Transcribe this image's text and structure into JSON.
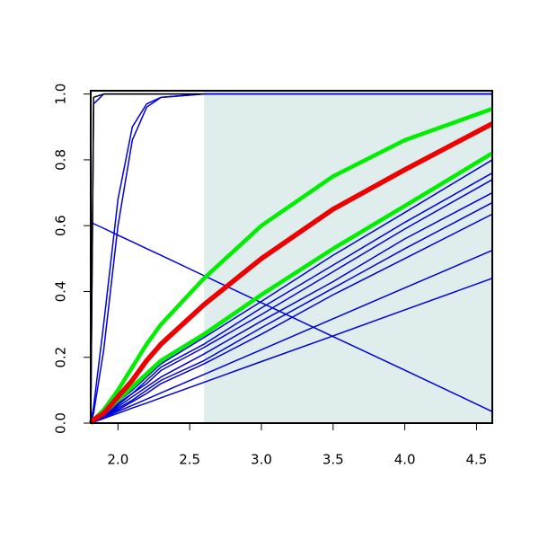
{
  "chart_data": {
    "type": "line",
    "x": [
      1.81,
      1.83,
      1.9,
      2.0,
      2.1,
      2.2,
      2.3,
      2.6,
      3.0,
      3.5,
      4.0,
      4.61
    ],
    "xlim": [
      1.81,
      4.61
    ],
    "ylim": [
      0,
      1.01
    ],
    "xticks": [
      {
        "value": 2.0,
        "label": "2.0"
      },
      2.5,
      {
        "value": 3.0,
        "label": "3.0"
      },
      3.5,
      {
        "value": 4.0,
        "label": "4.0"
      },
      4.5
    ],
    "yticks": [
      {
        "value": 0,
        "label": "0.0"
      },
      0.2,
      0.4,
      0.6,
      0.8,
      {
        "value": 1.0,
        "label": "1.0"
      }
    ],
    "shaded_region": {
      "xlim": [
        2.6,
        4.61
      ],
      "color": "#e0eded"
    },
    "series": [
      {
        "color": "#0000dd",
        "line_width": 1.5,
        "values": [
          0,
          0.005,
          0.02,
          0.04,
          0.065,
          0.09,
          0.12,
          0.18,
          0.27,
          0.39,
          0.5,
          0.635
        ]
      },
      {
        "color": "#0000dd",
        "line_width": 1.5,
        "values": [
          0,
          0.005,
          0.02,
          0.045,
          0.07,
          0.1,
          0.13,
          0.19,
          0.29,
          0.41,
          0.53,
          0.67
        ]
      },
      {
        "color": "#0000dd",
        "line_width": 1.5,
        "values": [
          0,
          0.01,
          0.02,
          0.05,
          0.08,
          0.11,
          0.14,
          0.21,
          0.31,
          0.43,
          0.56,
          0.7
        ]
      },
      {
        "color": "#0000dd",
        "line_width": 1.5,
        "values": [
          0,
          0.01,
          0.02,
          0.055,
          0.09,
          0.12,
          0.16,
          0.23,
          0.33,
          0.46,
          0.59,
          0.74
        ]
      },
      {
        "color": "#0000dd",
        "line_width": 1.5,
        "values": [
          0,
          0.01,
          0.025,
          0.06,
          0.09,
          0.13,
          0.17,
          0.24,
          0.35,
          0.48,
          0.61,
          0.76
        ]
      },
      {
        "color": "#0000dd",
        "line_width": 1.5,
        "values": [
          0,
          0.01,
          0.03,
          0.065,
          0.1,
          0.14,
          0.18,
          0.26,
          0.37,
          0.51,
          0.64,
          0.8
        ]
      },
      {
        "color": "#0000dd",
        "line_width": 1.5,
        "values": [
          0,
          0.004,
          0.017,
          0.036,
          0.054,
          0.073,
          0.092,
          0.148,
          0.223,
          0.317,
          0.411,
          0.525
        ]
      },
      {
        "color": "#0000dd",
        "line_width": 1.5,
        "values": [
          0,
          0.003,
          0.014,
          0.03,
          0.046,
          0.061,
          0.077,
          0.124,
          0.187,
          0.265,
          0.344,
          0.44
        ]
      },
      {
        "color": "#0000dd",
        "line_width": 1.5,
        "values": [
          0.61,
          0.606,
          0.592,
          0.571,
          0.551,
          0.53,
          0.51,
          0.448,
          0.366,
          0.263,
          0.161,
          0.035
        ]
      },
      {
        "color": "#0000dd",
        "line_width": 1.5,
        "values": [
          0,
          0.05,
          0.3,
          0.68,
          0.9,
          0.97,
          0.99,
          1,
          1,
          1,
          1,
          1
        ]
      },
      {
        "color": "#0000dd",
        "line_width": 1.5,
        "values": [
          0,
          0.03,
          0.22,
          0.6,
          0.86,
          0.96,
          0.99,
          1,
          1,
          1,
          1,
          1
        ]
      },
      {
        "color": "#0000dd",
        "line_width": 1.5,
        "values": [
          0,
          0.97,
          1,
          1,
          1,
          1,
          1,
          1,
          1,
          1,
          1,
          1
        ]
      },
      {
        "color": "#000000",
        "line_width": 1.5,
        "values": [
          0,
          0.99,
          1,
          1,
          1,
          1,
          1,
          1,
          null,
          null,
          null,
          null
        ]
      },
      {
        "color": "#00ee00",
        "line_width": 4.5,
        "values": [
          0,
          0.01,
          0.03,
          0.07,
          0.11,
          0.15,
          0.19,
          0.27,
          0.39,
          0.53,
          0.66,
          0.82
        ]
      },
      {
        "color": "#00ee00",
        "line_width": 4.5,
        "values": [
          0,
          0.01,
          0.04,
          0.1,
          0.17,
          0.24,
          0.3,
          0.44,
          0.6,
          0.75,
          0.86,
          0.955
        ]
      },
      {
        "color": "#ee0000",
        "line_width": 5.5,
        "values": [
          0,
          0.01,
          0.03,
          0.08,
          0.13,
          0.19,
          0.24,
          0.36,
          0.5,
          0.65,
          0.77,
          0.91
        ]
      }
    ]
  }
}
